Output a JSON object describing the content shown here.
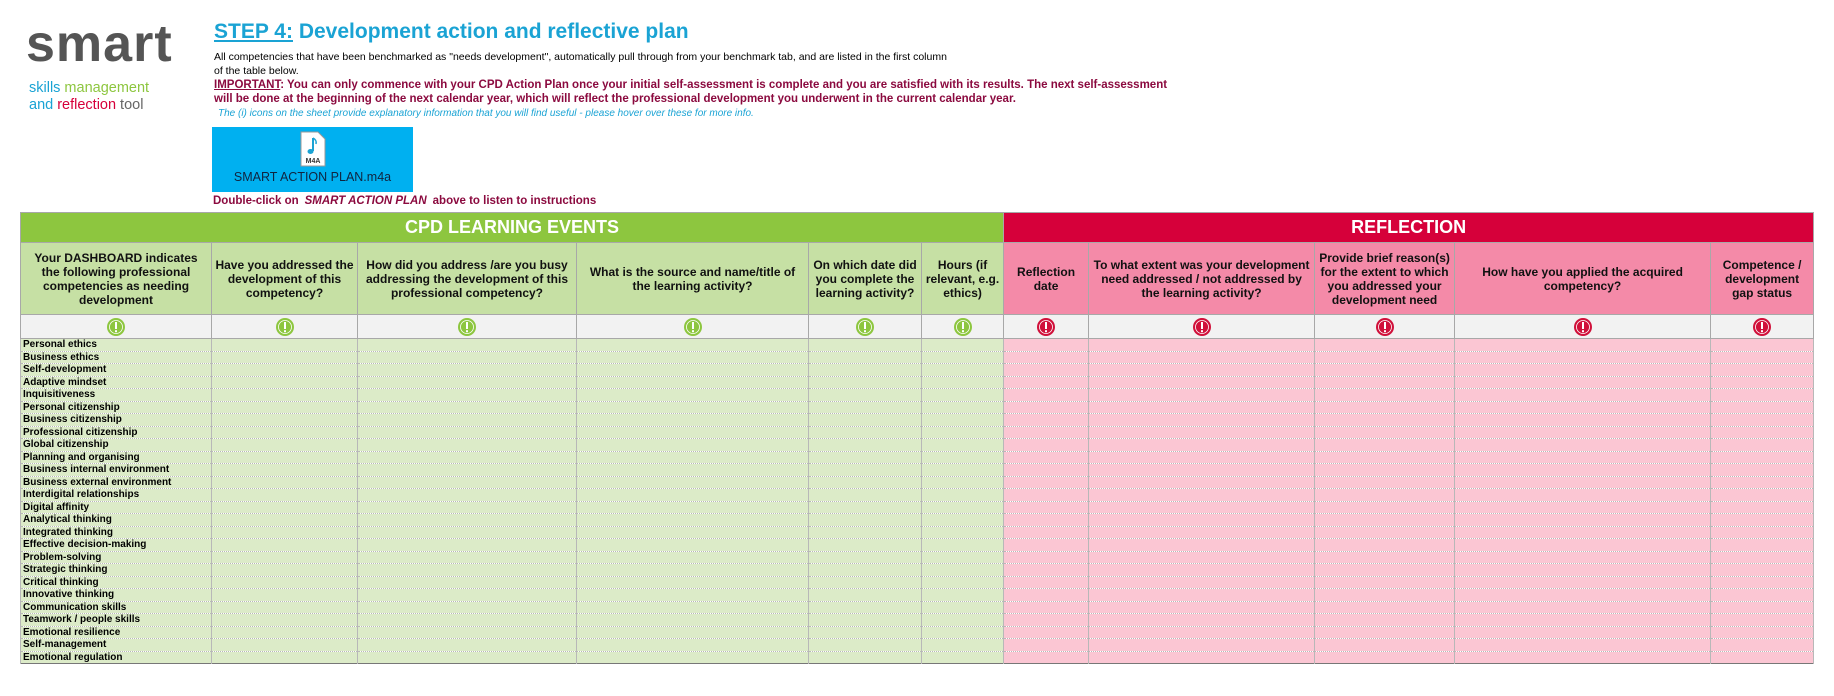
{
  "logo": {
    "name": "smart",
    "tagline": [
      [
        {
          "text": "skills",
          "color": "#1aa3d4"
        },
        {
          "text": "management",
          "color": "#8dc63f"
        }
      ],
      [
        {
          "text": "and",
          "color": "#1aa3d4"
        },
        {
          "text": "reflection",
          "color": "#d6003a"
        },
        {
          "text": "tool",
          "color": "#666666"
        }
      ]
    ]
  },
  "header": {
    "step_label": "STEP 4:",
    "title": "Development action and reflective plan",
    "intro": [
      "All competencies that have been benchmarked as \"needs development\", automatically pull through from your benchmark tab, and are listed in the first column",
      "of the table below."
    ],
    "important_label": "IMPORTANT",
    "important_text": [
      ": You can only commence with your CPD Action Plan once your initial self-assessment is complete and you are satisfied with its results. The next self-assessment",
      "will be done at the beginning of the next calendar year, which will reflect the professional development you underwent in the current calendar year."
    ],
    "info": "The (i) icons on the sheet provide explanatory information that you will find useful - please hover over these for more info."
  },
  "audio": {
    "filename": "SMART ACTION PLAN.m4a",
    "icon_label": "M4A",
    "instruction_before": "Double-click on",
    "instruction_emphasis": "SMART ACTION PLAN",
    "instruction_after": "above to listen to instructions"
  },
  "table": {
    "groups": [
      {
        "label": "CPD LEARNING EVENTS",
        "span": 6,
        "color": "#8dc63f",
        "header_color": "#c6e0a4",
        "cell_color": "#dcebc8",
        "icon_color": "#8dc63f"
      },
      {
        "label": "REFLECTION",
        "span": 5,
        "color": "#d6003a",
        "header_color": "#f48aa8",
        "cell_color": "#fbc6d3",
        "icon_color": "#d0103a"
      }
    ],
    "columns": [
      "Your DASHBOARD indicates the following professional competencies as needing development",
      "Have you addressed the development of this competency?",
      "How did you address /are you busy addressing the development of this professional competency?",
      "What is the source and name/title of the learning activity?",
      "On which date did you complete the learning activity?",
      "Hours (if relevant, e.g. ethics)",
      "Reflection date",
      "To what extent was your development need addressed / not addressed by the learning activity?",
      "Provide brief reason(s) for the extent to which you addressed your development need",
      "How have you applied the acquired competency?",
      "Competence / development gap status"
    ],
    "rows": [
      "Personal ethics",
      "Business ethics",
      "Self-development",
      "Adaptive mindset",
      "Inquisitiveness",
      "Personal citizenship",
      "Business citizenship",
      "Professional citizenship",
      "Global citizenship",
      "Planning and organising",
      "Business internal environment",
      "Business external environment",
      "Interdigital relationships",
      "Digital affinity",
      "Analytical thinking",
      "Integrated thinking",
      "Effective decision-making",
      "Problem-solving",
      "Strategic thinking",
      "Critical thinking",
      "Innovative thinking",
      "Communication skills",
      "Teamwork / people skills",
      "Emotional resilience",
      "Self-management",
      "Emotional regulation"
    ]
  }
}
